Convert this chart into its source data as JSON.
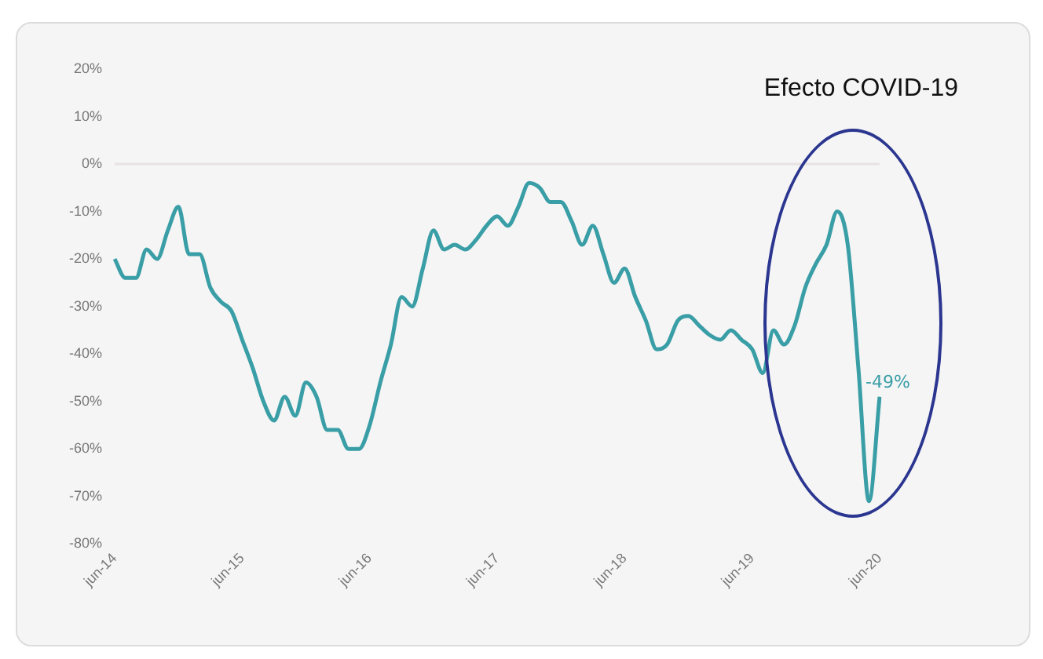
{
  "chart_data": {
    "type": "line",
    "categories": [
      "jun-14",
      null,
      null,
      null,
      null,
      null,
      null,
      null,
      null,
      null,
      null,
      null,
      "jun-15",
      null,
      null,
      null,
      null,
      null,
      null,
      null,
      null,
      null,
      null,
      null,
      "jun-16",
      null,
      null,
      null,
      null,
      null,
      null,
      null,
      null,
      null,
      null,
      null,
      "jun-17",
      null,
      null,
      null,
      null,
      null,
      null,
      null,
      null,
      null,
      null,
      null,
      "jun-18",
      null,
      null,
      null,
      null,
      null,
      null,
      null,
      null,
      null,
      null,
      null,
      "jun-19",
      null,
      null,
      null,
      null,
      null,
      null,
      null,
      null,
      null,
      null,
      null,
      "jun-20"
    ],
    "series": [
      {
        "color": "#3a9ea6",
        "values": [
          -20,
          -24,
          -24,
          -18,
          -20,
          -14,
          -9,
          -19,
          -19,
          -26,
          -29,
          -31,
          -37,
          -43,
          -50,
          -54,
          -49,
          -53,
          -46,
          -49,
          -56,
          -56,
          -60,
          -60,
          -55,
          -46,
          -38,
          -28,
          -30,
          -22,
          -14,
          -18,
          -17,
          -18,
          -16,
          -13,
          -11,
          -13,
          -9,
          -4,
          -5,
          -8,
          -8,
          -12,
          -17,
          -13,
          -19,
          -25,
          -22,
          -28,
          -33,
          -39,
          -38,
          -33,
          -32,
          -34,
          -36,
          -37,
          -35,
          -37,
          -39,
          -44,
          -35,
          -38,
          -34,
          -26,
          -21,
          -17,
          -10,
          -17,
          -43,
          -71,
          -49
        ],
        "value_labels": [
          null,
          null,
          null,
          null,
          null,
          null,
          null,
          null,
          null,
          null,
          null,
          null,
          null,
          null,
          null,
          null,
          null,
          null,
          null,
          null,
          null,
          null,
          null,
          null,
          null,
          null,
          null,
          null,
          null,
          null,
          null,
          null,
          null,
          null,
          null,
          null,
          null,
          null,
          null,
          null,
          null,
          null,
          null,
          null,
          null,
          null,
          null,
          null,
          null,
          null,
          null,
          null,
          null,
          null,
          null,
          null,
          null,
          null,
          null,
          null,
          null,
          null,
          null,
          null,
          null,
          null,
          null,
          null,
          null,
          null,
          null,
          null,
          "-49%"
        ]
      }
    ],
    "ylim": [
      -80,
      20
    ],
    "yticks": [
      {
        "value": -80,
        "label": "-80%"
      },
      {
        "value": -70,
        "label": "-70%"
      },
      {
        "value": -60,
        "label": "-60%"
      },
      {
        "value": -50,
        "label": "-50%"
      },
      {
        "value": -40,
        "label": "-40%"
      },
      {
        "value": -30,
        "label": "-30%"
      },
      {
        "value": -20,
        "label": "-20%"
      },
      {
        "value": -10,
        "label": "-10%"
      },
      {
        "value": 0,
        "label": "0%"
      },
      {
        "value": 10,
        "label": "10%"
      },
      {
        "value": 20,
        "label": "20%"
      }
    ],
    "ref_lines": [
      {
        "axis": "y",
        "value": 0,
        "color": "#e8e2e2"
      }
    ],
    "annotations": [
      "Efecto COVID-19"
    ],
    "grid": false,
    "legend": false,
    "marker": "none",
    "line_style": "solid"
  }
}
